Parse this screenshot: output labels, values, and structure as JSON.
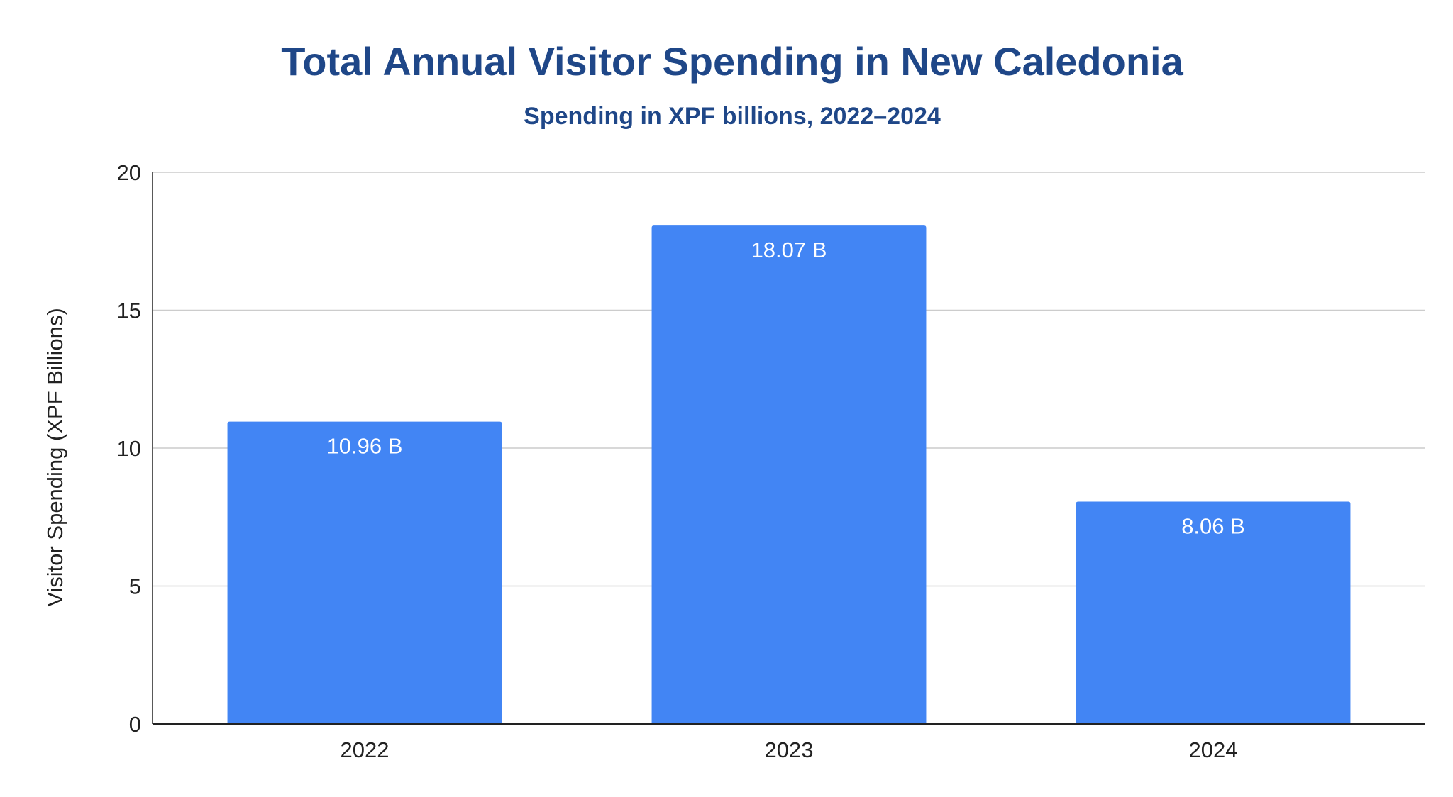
{
  "chart_data": {
    "type": "bar",
    "title": "Total Annual Visitor Spending in New Caledonia",
    "subtitle": "Spending in XPF billions, 2022–2024",
    "xlabel": "",
    "ylabel": "Visitor Spending (XPF Billions)",
    "categories": [
      "2022",
      "2023",
      "2024"
    ],
    "values": [
      10.96,
      18.07,
      8.06
    ],
    "data_labels": [
      "10.96 B",
      "18.07 B",
      "8.06 B"
    ],
    "ylim": [
      0,
      20
    ],
    "yticks": [
      0,
      5,
      10,
      15,
      20
    ],
    "grid": true,
    "legend": "none",
    "colors": {
      "bar": "#4285F4",
      "title": "#1F4788",
      "gridline": "#CCCCCC",
      "axis": "#222222"
    }
  }
}
